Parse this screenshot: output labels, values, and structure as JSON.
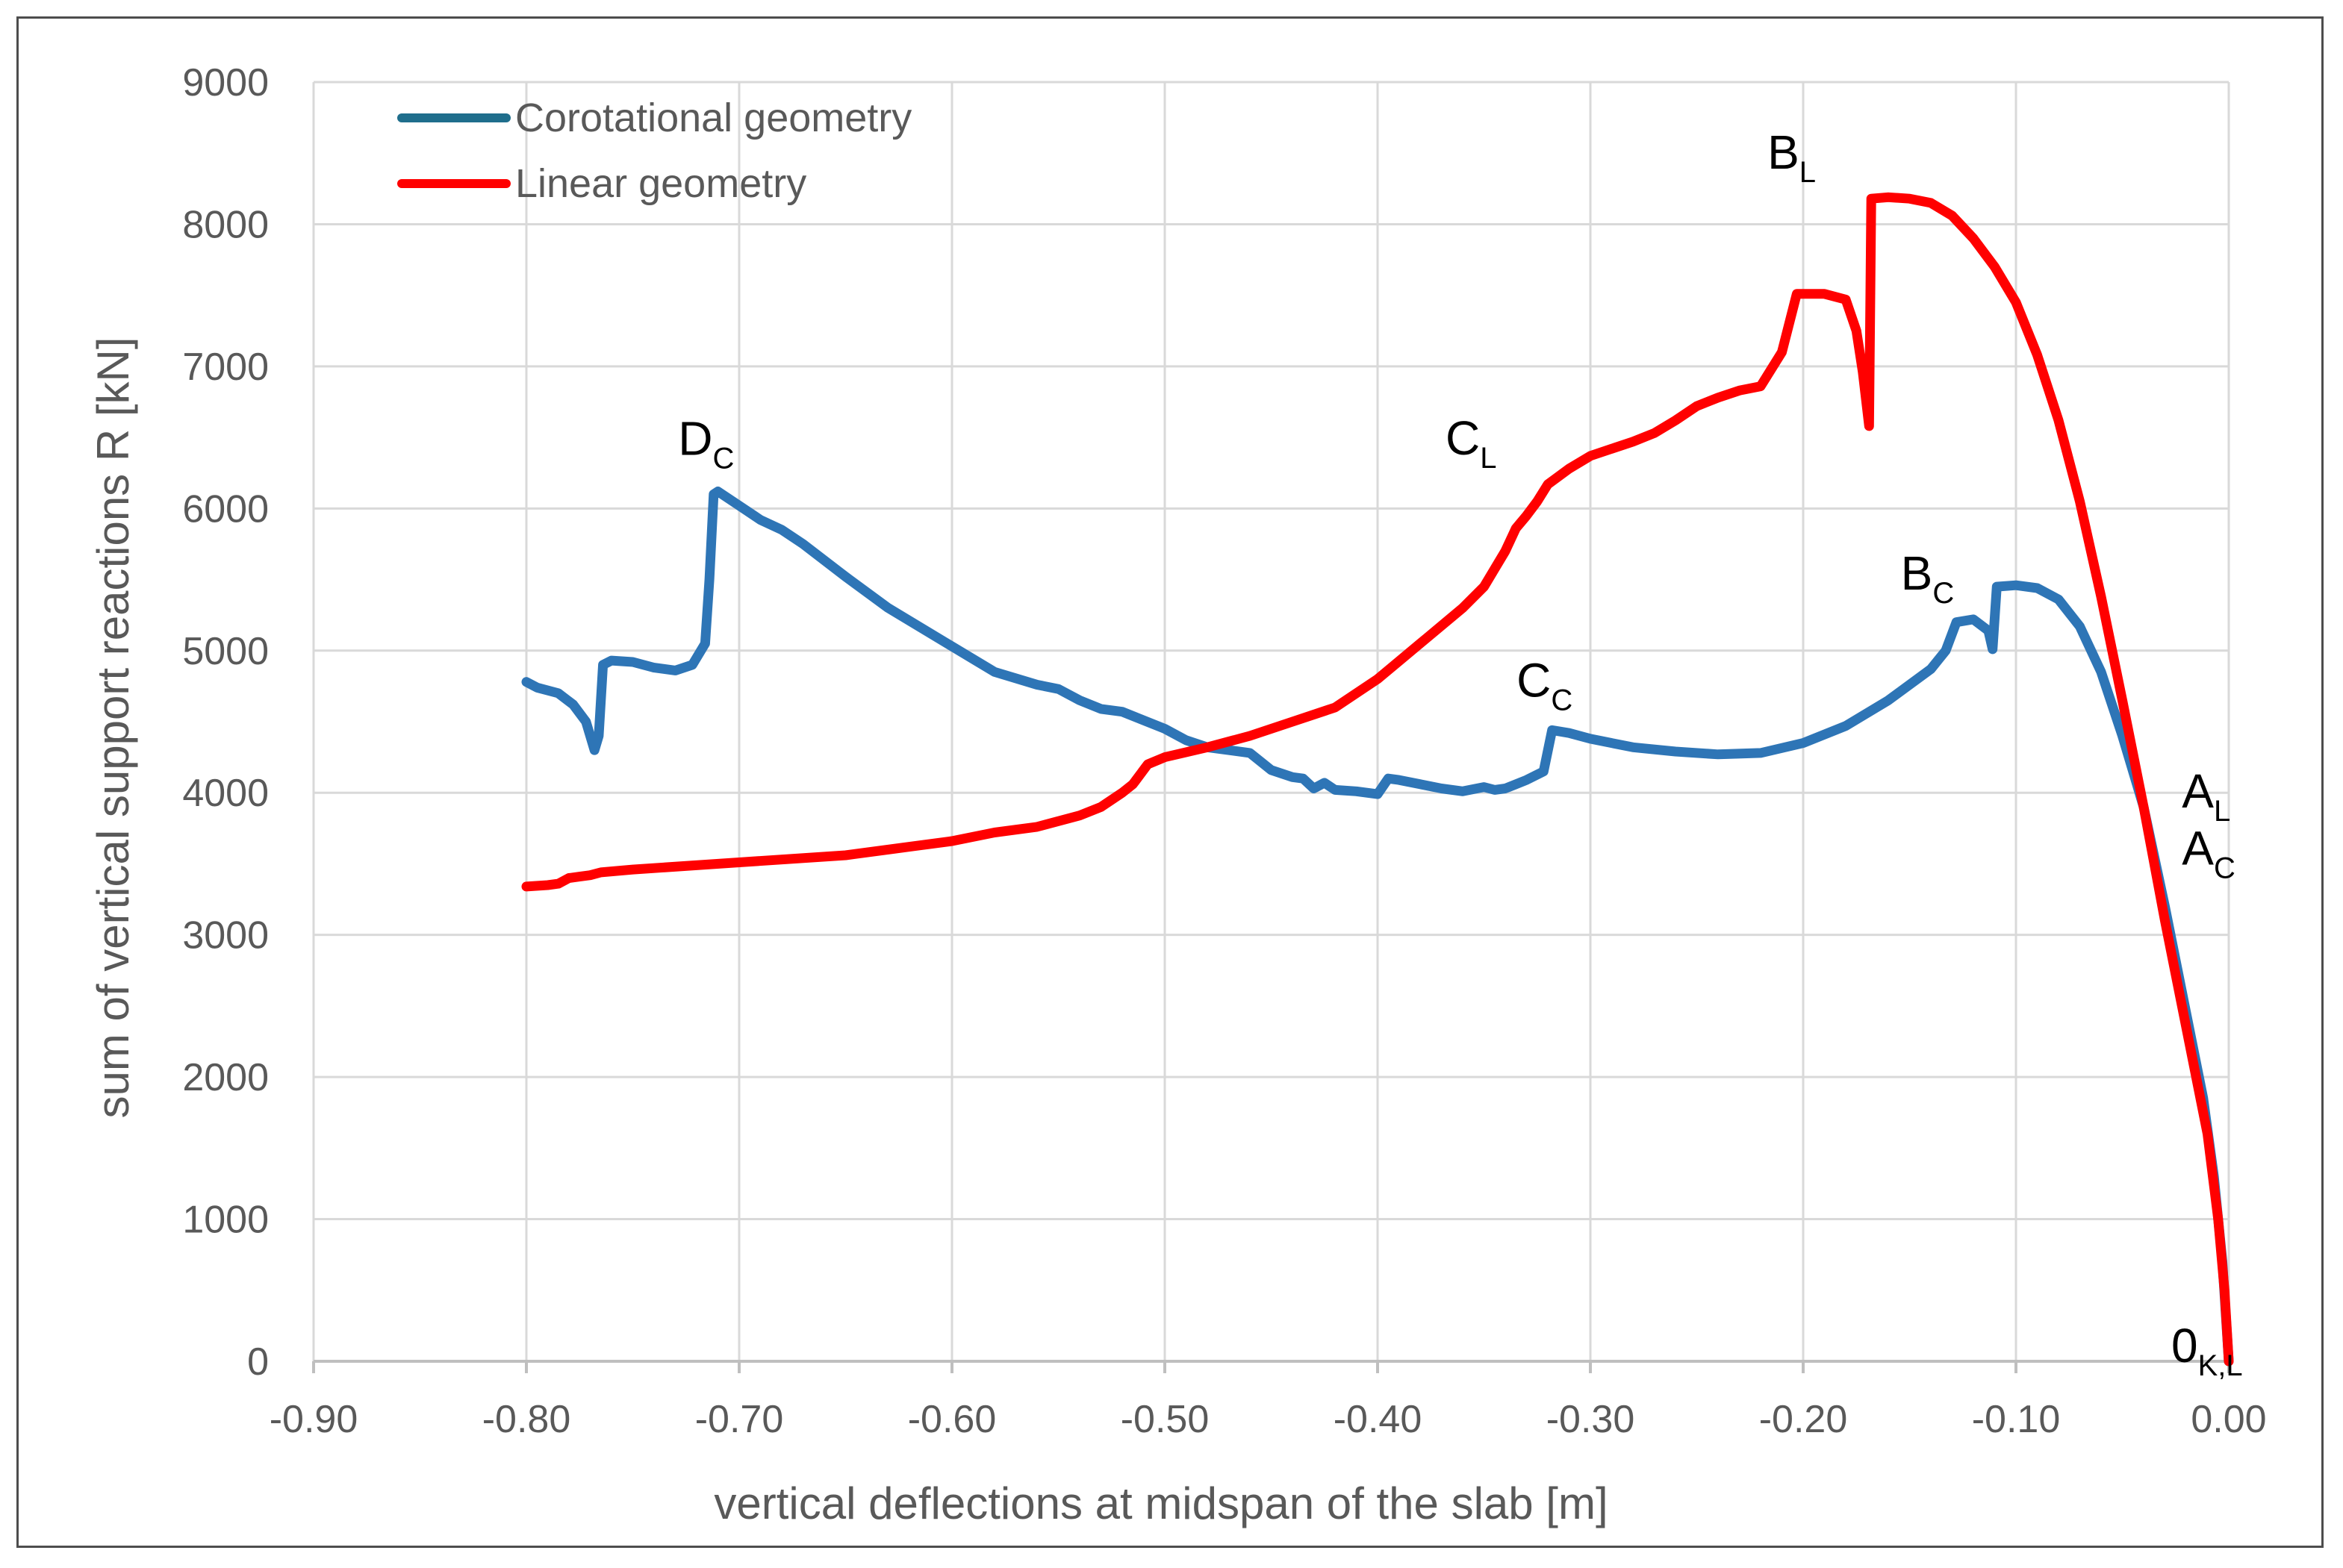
{
  "chart_data": {
    "type": "line",
    "xlabel": "vertical deflections at midspan of the slab [m]",
    "ylabel": "sum of vertical support reactions R [kN]",
    "xlim": [
      -0.9,
      0.0
    ],
    "ylim": [
      0,
      9000
    ],
    "x_ticks": [
      "-0.90",
      "-0.80",
      "-0.70",
      "-0.60",
      "-0.50",
      "-0.40",
      "-0.30",
      "-0.20",
      "-0.10",
      "0.00"
    ],
    "y_ticks": [
      "0",
      "1000",
      "2000",
      "3000",
      "4000",
      "5000",
      "6000",
      "7000",
      "8000",
      "9000"
    ],
    "grid": true,
    "legend_position": "top-left",
    "series": [
      {
        "name": "Corotational geometry",
        "color": "#2e75b6",
        "legend_color": "#1f6e8c",
        "points": [
          [
            -0.8,
            4780
          ],
          [
            -0.795,
            4740
          ],
          [
            -0.785,
            4700
          ],
          [
            -0.778,
            4620
          ],
          [
            -0.772,
            4500
          ],
          [
            -0.768,
            4300
          ],
          [
            -0.766,
            4400
          ],
          [
            -0.764,
            4900
          ],
          [
            -0.76,
            4930
          ],
          [
            -0.75,
            4920
          ],
          [
            -0.74,
            4880
          ],
          [
            -0.73,
            4860
          ],
          [
            -0.722,
            4900
          ],
          [
            -0.716,
            5050
          ],
          [
            -0.714,
            5500
          ],
          [
            -0.712,
            6100
          ],
          [
            -0.71,
            6120
          ],
          [
            -0.7,
            6020
          ],
          [
            -0.69,
            5920
          ],
          [
            -0.68,
            5850
          ],
          [
            -0.67,
            5750
          ],
          [
            -0.65,
            5520
          ],
          [
            -0.63,
            5300
          ],
          [
            -0.6,
            5030
          ],
          [
            -0.58,
            4850
          ],
          [
            -0.56,
            4760
          ],
          [
            -0.55,
            4730
          ],
          [
            -0.54,
            4650
          ],
          [
            -0.53,
            4590
          ],
          [
            -0.52,
            4570
          ],
          [
            -0.5,
            4450
          ],
          [
            -0.49,
            4370
          ],
          [
            -0.48,
            4320
          ],
          [
            -0.46,
            4280
          ],
          [
            -0.45,
            4160
          ],
          [
            -0.44,
            4110
          ],
          [
            -0.435,
            4100
          ],
          [
            -0.43,
            4030
          ],
          [
            -0.425,
            4070
          ],
          [
            -0.42,
            4020
          ],
          [
            -0.41,
            4010
          ],
          [
            -0.4,
            3990
          ],
          [
            -0.395,
            4100
          ],
          [
            -0.39,
            4090
          ],
          [
            -0.38,
            4060
          ],
          [
            -0.37,
            4030
          ],
          [
            -0.36,
            4010
          ],
          [
            -0.35,
            4040
          ],
          [
            -0.345,
            4020
          ],
          [
            -0.34,
            4030
          ],
          [
            -0.33,
            4090
          ],
          [
            -0.322,
            4150
          ],
          [
            -0.318,
            4440
          ],
          [
            -0.31,
            4420
          ],
          [
            -0.3,
            4380
          ],
          [
            -0.28,
            4320
          ],
          [
            -0.26,
            4290
          ],
          [
            -0.24,
            4270
          ],
          [
            -0.22,
            4280
          ],
          [
            -0.2,
            4350
          ],
          [
            -0.18,
            4470
          ],
          [
            -0.16,
            4650
          ],
          [
            -0.14,
            4870
          ],
          [
            -0.133,
            5000
          ],
          [
            -0.128,
            5200
          ],
          [
            -0.12,
            5220
          ],
          [
            -0.113,
            5140
          ],
          [
            -0.111,
            5010
          ],
          [
            -0.109,
            5450
          ],
          [
            -0.1,
            5460
          ],
          [
            -0.09,
            5440
          ],
          [
            -0.08,
            5360
          ],
          [
            -0.07,
            5170
          ],
          [
            -0.06,
            4850
          ],
          [
            -0.05,
            4400
          ],
          [
            -0.04,
            3900
          ],
          [
            -0.03,
            3200
          ],
          [
            -0.02,
            2450
          ],
          [
            -0.012,
            1850
          ],
          [
            -0.007,
            1300
          ],
          [
            -0.003,
            700
          ],
          [
            0.0,
            0
          ]
        ]
      },
      {
        "name": "Linear geometry",
        "color": "#ff0000",
        "legend_color": "#ff0000",
        "points": [
          [
            -0.8,
            3340
          ],
          [
            -0.79,
            3350
          ],
          [
            -0.785,
            3360
          ],
          [
            -0.78,
            3400
          ],
          [
            -0.775,
            3410
          ],
          [
            -0.77,
            3420
          ],
          [
            -0.765,
            3440
          ],
          [
            -0.75,
            3460
          ],
          [
            -0.7,
            3510
          ],
          [
            -0.65,
            3560
          ],
          [
            -0.62,
            3620
          ],
          [
            -0.6,
            3660
          ],
          [
            -0.58,
            3720
          ],
          [
            -0.56,
            3760
          ],
          [
            -0.54,
            3840
          ],
          [
            -0.53,
            3900
          ],
          [
            -0.52,
            4000
          ],
          [
            -0.515,
            4060
          ],
          [
            -0.508,
            4200
          ],
          [
            -0.5,
            4250
          ],
          [
            -0.48,
            4320
          ],
          [
            -0.46,
            4400
          ],
          [
            -0.44,
            4500
          ],
          [
            -0.42,
            4600
          ],
          [
            -0.4,
            4800
          ],
          [
            -0.38,
            5050
          ],
          [
            -0.36,
            5300
          ],
          [
            -0.35,
            5450
          ],
          [
            -0.34,
            5700
          ],
          [
            -0.335,
            5860
          ],
          [
            -0.33,
            5950
          ],
          [
            -0.325,
            6050
          ],
          [
            -0.32,
            6170
          ],
          [
            -0.31,
            6280
          ],
          [
            -0.3,
            6370
          ],
          [
            -0.29,
            6420
          ],
          [
            -0.28,
            6470
          ],
          [
            -0.27,
            6530
          ],
          [
            -0.26,
            6620
          ],
          [
            -0.25,
            6720
          ],
          [
            -0.24,
            6780
          ],
          [
            -0.23,
            6830
          ],
          [
            -0.22,
            6860
          ],
          [
            -0.21,
            7100
          ],
          [
            -0.203,
            7510
          ],
          [
            -0.19,
            7510
          ],
          [
            -0.18,
            7470
          ],
          [
            -0.175,
            7250
          ],
          [
            -0.172,
            6960
          ],
          [
            -0.169,
            6580
          ],
          [
            -0.168,
            8180
          ],
          [
            -0.16,
            8190
          ],
          [
            -0.15,
            8180
          ],
          [
            -0.14,
            8150
          ],
          [
            -0.13,
            8060
          ],
          [
            -0.12,
            7900
          ],
          [
            -0.11,
            7700
          ],
          [
            -0.1,
            7450
          ],
          [
            -0.09,
            7080
          ],
          [
            -0.08,
            6620
          ],
          [
            -0.07,
            6050
          ],
          [
            -0.06,
            5380
          ],
          [
            -0.05,
            4650
          ],
          [
            -0.04,
            3900
          ],
          [
            -0.03,
            3100
          ],
          [
            -0.02,
            2350
          ],
          [
            -0.01,
            1600
          ],
          [
            -0.005,
            1000
          ],
          [
            -0.002,
            500
          ],
          [
            0.0,
            0
          ]
        ]
      }
    ],
    "annotations": [
      {
        "main": "D",
        "sub": "C",
        "x": -0.712,
        "y": 6140,
        "pos": "above"
      },
      {
        "main": "C",
        "sub": "L",
        "x": -0.33,
        "y": 6170,
        "pos": "above-left"
      },
      {
        "main": "B",
        "sub": "L",
        "x": -0.18,
        "y": 8180,
        "pos": "above-left"
      },
      {
        "main": "C",
        "sub": "C",
        "x": -0.318,
        "y": 4440,
        "pos": "above"
      },
      {
        "main": "B",
        "sub": "C",
        "x": -0.115,
        "y": 5220,
        "pos": "above-left"
      },
      {
        "main": "A",
        "sub": "L",
        "x": -0.015,
        "y": 4000,
        "pos": "right"
      },
      {
        "main": "A",
        "sub": "C",
        "x": -0.015,
        "y": 3600,
        "pos": "right"
      },
      {
        "main": "0",
        "sub": "K,L",
        "x": -0.02,
        "y": 100,
        "pos": "right"
      }
    ]
  }
}
